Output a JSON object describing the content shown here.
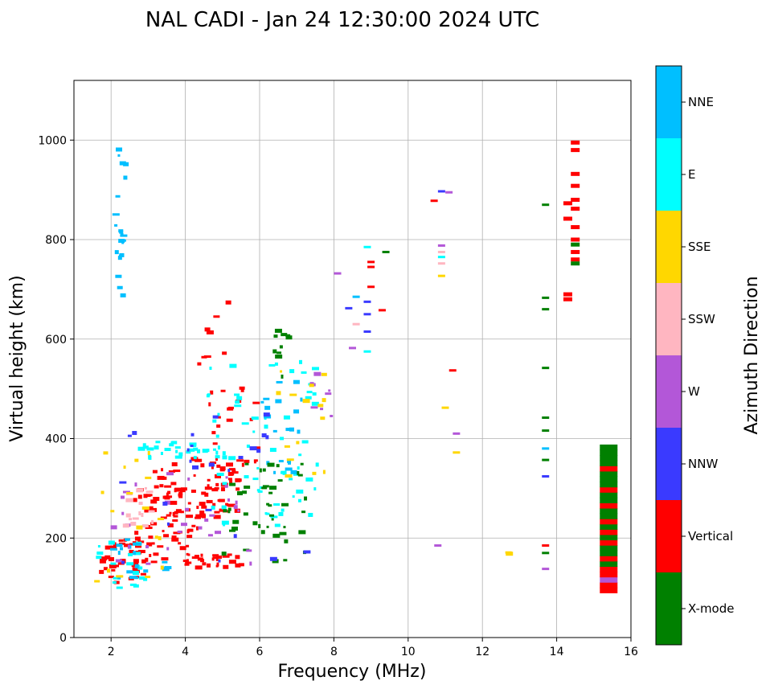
{
  "chart_data": {
    "type": "scatter",
    "title": "NAL CADI - Jan 24 12:30:00 2024 UTC",
    "xlabel": "Frequency (MHz)",
    "ylabel": "Virtual height (km)",
    "xlim": [
      1,
      16
    ],
    "ylim": [
      0,
      1120
    ],
    "xticks": [
      2,
      4,
      6,
      8,
      10,
      12,
      14,
      16
    ],
    "yticks": [
      0,
      200,
      400,
      600,
      800,
      1000
    ],
    "grid": true,
    "colorbar": {
      "label": "Azimuth Direction",
      "categories": [
        {
          "name": "X-mode",
          "color": "#008000"
        },
        {
          "name": "Vertical",
          "color": "#ff0000"
        },
        {
          "name": "NNW",
          "color": "#3a3aff"
        },
        {
          "name": "W",
          "color": "#b357d8"
        },
        {
          "name": "SSW",
          "color": "#ffb6c1"
        },
        {
          "name": "SSE",
          "color": "#ffd700"
        },
        {
          "name": "E",
          "color": "#00ffff"
        },
        {
          "name": "NNE",
          "color": "#00bfff"
        }
      ]
    },
    "clusters": [
      {
        "direction": "Vertical",
        "fmin": 1.6,
        "fmax": 3.2,
        "hmin": 110,
        "hmax": 200,
        "n": 40
      },
      {
        "direction": "Vertical",
        "fmin": 2.6,
        "fmax": 4.5,
        "hmin": 150,
        "hmax": 300,
        "n": 60
      },
      {
        "direction": "Vertical",
        "fmin": 3.0,
        "fmax": 5.5,
        "hmin": 240,
        "hmax": 360,
        "n": 70
      },
      {
        "direction": "Vertical",
        "fmin": 4.0,
        "fmax": 5.6,
        "hmin": 140,
        "hmax": 170,
        "n": 25
      },
      {
        "direction": "Vertical",
        "fmin": 4.6,
        "fmax": 6.0,
        "hmin": 290,
        "hmax": 520,
        "n": 30
      },
      {
        "direction": "Vertical",
        "fmin": 3.8,
        "fmax": 5.2,
        "hmin": 520,
        "hmax": 680,
        "n": 8
      },
      {
        "direction": "E",
        "fmin": 2.8,
        "fmax": 5.0,
        "hmin": 360,
        "hmax": 395,
        "n": 30
      },
      {
        "direction": "E",
        "fmin": 4.5,
        "fmax": 7.6,
        "hmin": 220,
        "hmax": 560,
        "n": 70
      },
      {
        "direction": "E",
        "fmin": 1.5,
        "fmax": 3.0,
        "hmin": 100,
        "hmax": 200,
        "n": 20
      },
      {
        "direction": "NNE",
        "fmin": 2.1,
        "fmax": 2.4,
        "hmin": 680,
        "hmax": 1015,
        "n": 22
      },
      {
        "direction": "NNE",
        "fmin": 2.0,
        "fmax": 3.6,
        "hmin": 110,
        "hmax": 200,
        "n": 20
      },
      {
        "direction": "NNE",
        "fmin": 6.0,
        "fmax": 7.2,
        "hmin": 330,
        "hmax": 520,
        "n": 20
      },
      {
        "direction": "X-mode",
        "fmin": 5.0,
        "fmax": 7.3,
        "hmin": 150,
        "hmax": 360,
        "n": 45
      },
      {
        "direction": "X-mode",
        "fmin": 6.4,
        "fmax": 6.8,
        "hmin": 520,
        "hmax": 630,
        "n": 10
      },
      {
        "direction": "W",
        "fmin": 1.8,
        "fmax": 5.8,
        "hmin": 130,
        "hmax": 330,
        "n": 30
      },
      {
        "direction": "W",
        "fmin": 7.3,
        "fmax": 8.0,
        "hmin": 430,
        "hmax": 560,
        "n": 8
      },
      {
        "direction": "NNW",
        "fmin": 2.0,
        "fmax": 7.5,
        "hmin": 150,
        "hmax": 450,
        "n": 25
      },
      {
        "direction": "SSW",
        "fmin": 2.4,
        "fmax": 3.2,
        "hmin": 220,
        "hmax": 300,
        "n": 18
      },
      {
        "direction": "SSE",
        "fmin": 1.5,
        "fmax": 3.4,
        "hmin": 110,
        "hmax": 390,
        "n": 18
      },
      {
        "direction": "SSE",
        "fmin": 6.4,
        "fmax": 7.8,
        "hmin": 300,
        "hmax": 540,
        "n": 15
      },
      {
        "direction": "SSE",
        "fmin": 12.7,
        "fmax": 13.0,
        "hmin": 168,
        "hmax": 172,
        "n": 2
      }
    ],
    "points": [
      {
        "f": 8.9,
        "h": 785,
        "d": "E"
      },
      {
        "f": 9.0,
        "h": 755,
        "d": "Vertical"
      },
      {
        "f": 9.0,
        "h": 745,
        "d": "Vertical"
      },
      {
        "f": 9.4,
        "h": 775,
        "d": "X-mode"
      },
      {
        "f": 8.6,
        "h": 685,
        "d": "NNE"
      },
      {
        "f": 8.9,
        "h": 675,
        "d": "NNW"
      },
      {
        "f": 8.9,
        "h": 650,
        "d": "NNW"
      },
      {
        "f": 8.6,
        "h": 630,
        "d": "SSW"
      },
      {
        "f": 8.9,
        "h": 615,
        "d": "NNW"
      },
      {
        "f": 8.5,
        "h": 582,
        "d": "W"
      },
      {
        "f": 8.9,
        "h": 575,
        "d": "E"
      },
      {
        "f": 9.0,
        "h": 705,
        "d": "Vertical"
      },
      {
        "f": 9.3,
        "h": 658,
        "d": "Vertical"
      },
      {
        "f": 8.1,
        "h": 732,
        "d": "W"
      },
      {
        "f": 8.4,
        "h": 662,
        "d": "NNW"
      },
      {
        "f": 10.7,
        "h": 878,
        "d": "Vertical"
      },
      {
        "f": 10.9,
        "h": 897,
        "d": "NNW"
      },
      {
        "f": 11.1,
        "h": 895,
        "d": "W"
      },
      {
        "f": 10.9,
        "h": 788,
        "d": "W"
      },
      {
        "f": 10.9,
        "h": 775,
        "d": "SSW"
      },
      {
        "f": 10.9,
        "h": 765,
        "d": "E"
      },
      {
        "f": 10.9,
        "h": 752,
        "d": "SSW"
      },
      {
        "f": 10.9,
        "h": 727,
        "d": "SSE"
      },
      {
        "f": 11.2,
        "h": 537,
        "d": "Vertical"
      },
      {
        "f": 11.0,
        "h": 462,
        "d": "SSE"
      },
      {
        "f": 11.3,
        "h": 410,
        "d": "W"
      },
      {
        "f": 11.3,
        "h": 372,
        "d": "SSE"
      },
      {
        "f": 10.8,
        "h": 185,
        "d": "W"
      },
      {
        "f": 13.7,
        "h": 870,
        "d": "X-mode"
      },
      {
        "f": 13.7,
        "h": 683,
        "d": "X-mode"
      },
      {
        "f": 13.7,
        "h": 660,
        "d": "X-mode"
      },
      {
        "f": 13.7,
        "h": 542,
        "d": "X-mode"
      },
      {
        "f": 13.7,
        "h": 442,
        "d": "X-mode"
      },
      {
        "f": 13.7,
        "h": 416,
        "d": "X-mode"
      },
      {
        "f": 13.7,
        "h": 380,
        "d": "NNE"
      },
      {
        "f": 13.7,
        "h": 357,
        "d": "X-mode"
      },
      {
        "f": 13.7,
        "h": 324,
        "d": "NNW"
      },
      {
        "f": 13.7,
        "h": 185,
        "d": "Vertical"
      },
      {
        "f": 13.7,
        "h": 170,
        "d": "X-mode"
      },
      {
        "f": 13.7,
        "h": 138,
        "d": "W"
      },
      {
        "f": 14.5,
        "h": 995,
        "d": "Vertical"
      },
      {
        "f": 14.5,
        "h": 980,
        "d": "Vertical"
      },
      {
        "f": 14.5,
        "h": 932,
        "d": "Vertical"
      },
      {
        "f": 14.5,
        "h": 908,
        "d": "Vertical"
      },
      {
        "f": 14.5,
        "h": 880,
        "d": "Vertical"
      },
      {
        "f": 14.5,
        "h": 862,
        "d": "Vertical"
      },
      {
        "f": 14.3,
        "h": 873,
        "d": "Vertical"
      },
      {
        "f": 14.3,
        "h": 842,
        "d": "Vertical"
      },
      {
        "f": 14.5,
        "h": 825,
        "d": "Vertical"
      },
      {
        "f": 14.5,
        "h": 800,
        "d": "Vertical"
      },
      {
        "f": 14.5,
        "h": 790,
        "d": "X-mode"
      },
      {
        "f": 14.5,
        "h": 775,
        "d": "Vertical"
      },
      {
        "f": 14.5,
        "h": 760,
        "d": "Vertical"
      },
      {
        "f": 14.5,
        "h": 752,
        "d": "X-mode"
      },
      {
        "f": 14.3,
        "h": 690,
        "d": "Vertical"
      },
      {
        "f": 14.3,
        "h": 680,
        "d": "Vertical"
      }
    ],
    "stack": {
      "f": 15.4,
      "hmin": 90,
      "hmax": 388,
      "colors": [
        "Vertical",
        "Vertical",
        "W",
        "Vertical",
        "Vertical",
        "X-mode",
        "Vertical",
        "X-mode",
        "X-mode",
        "Vertical",
        "X-mode",
        "Vertical",
        "X-mode",
        "Vertical",
        "X-mode",
        "X-mode",
        "Vertical",
        "X-mode",
        "X-mode",
        "Vertical",
        "X-mode",
        "X-mode",
        "X-mode",
        "Vertical",
        "X-mode",
        "X-mode",
        "X-mode",
        "X-mode"
      ]
    }
  }
}
